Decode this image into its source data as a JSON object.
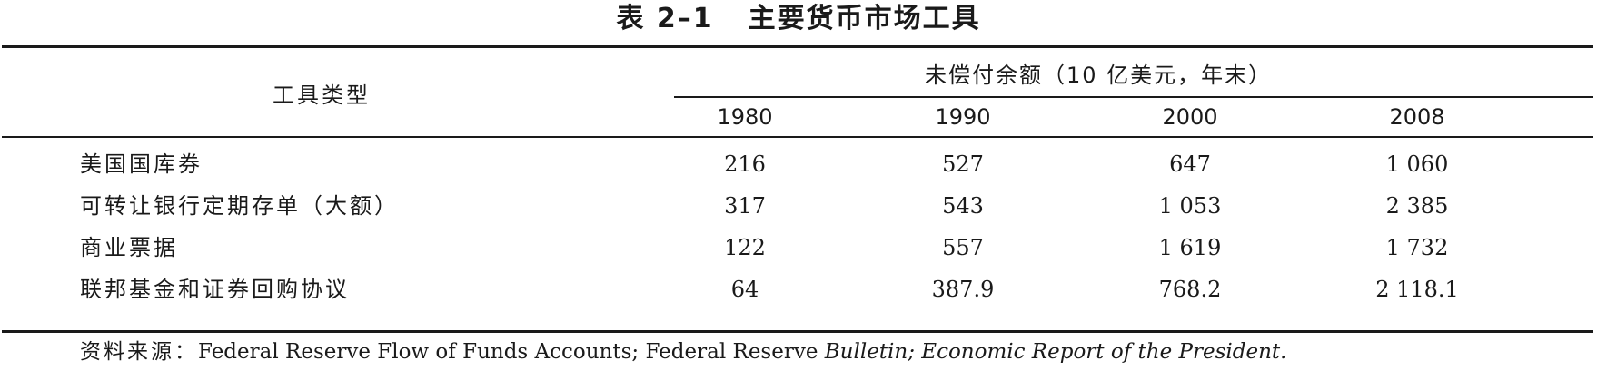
{
  "table": {
    "number": "表 2–1",
    "title": "主要货币市场工具",
    "type_header": "工具类型",
    "span_header": "未偿付余额（10 亿美元，年末）",
    "years": [
      "1980",
      "1990",
      "2000",
      "2008"
    ],
    "rows": [
      {
        "label": "美国国库券",
        "values": [
          "216",
          "527",
          "647",
          "1 060"
        ]
      },
      {
        "label": "可转让银行定期存单（大额）",
        "values": [
          "317",
          "543",
          "1 053",
          "2 385"
        ]
      },
      {
        "label": "商业票据",
        "values": [
          "122",
          "557",
          "1 619",
          "1 732"
        ]
      },
      {
        "label": "联邦基金和证券回购协议",
        "values": [
          "64",
          "387.9",
          "768.2",
          "2 118.1"
        ]
      }
    ]
  },
  "source": {
    "label": "资料来源：",
    "text_1": "Federal Reserve Flow of Funds Accounts; Federal Reserve ",
    "text_2_italic": "Bulletin; Economic Report of the President."
  }
}
